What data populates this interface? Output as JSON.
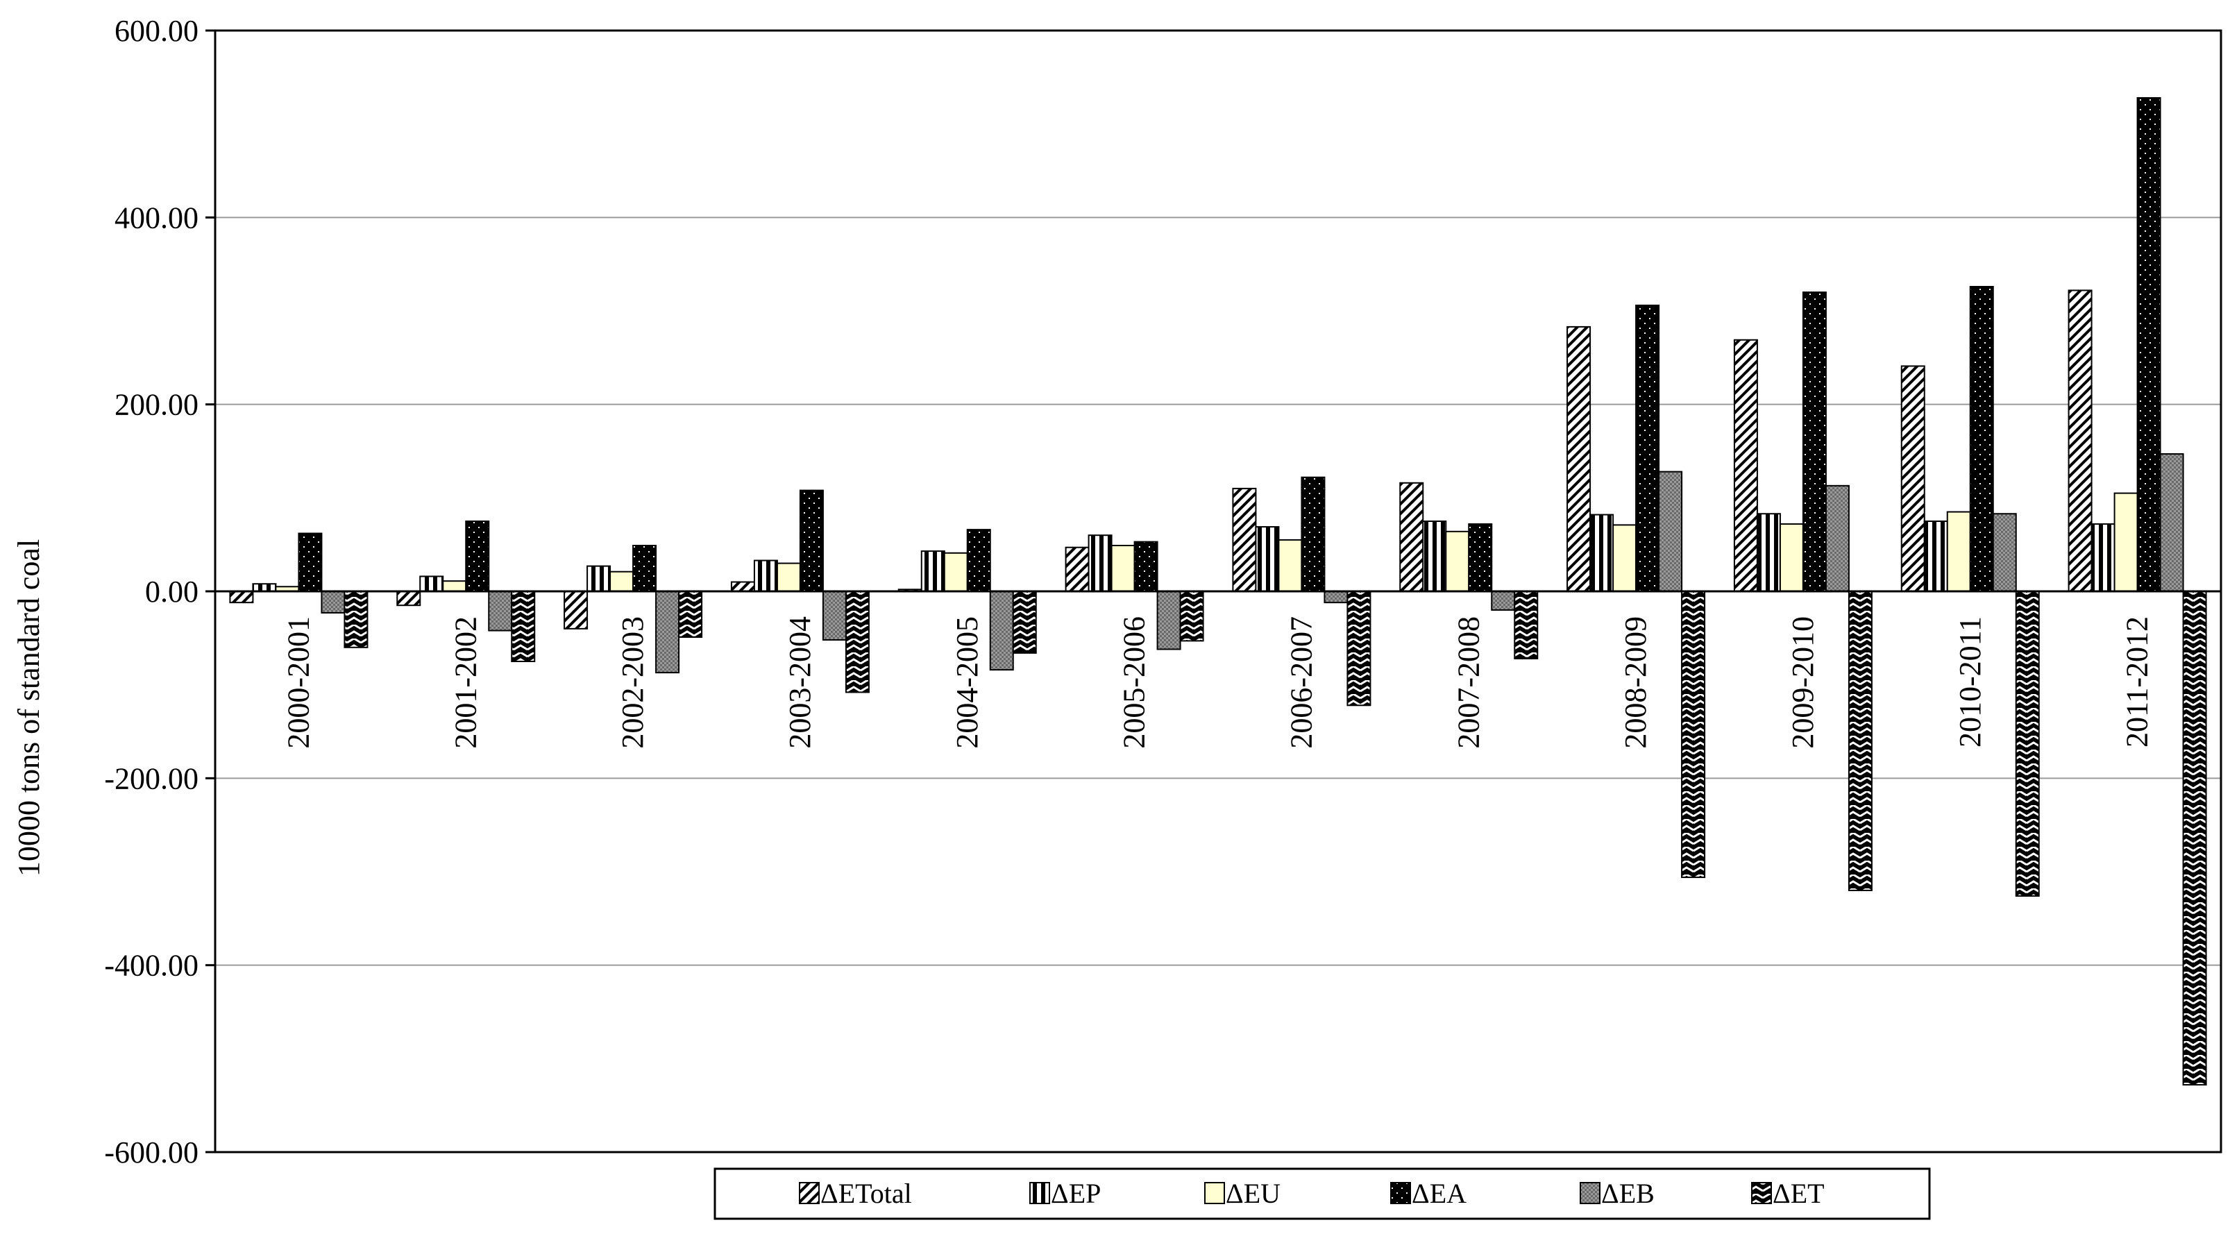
{
  "chart_data": {
    "type": "bar",
    "title": "",
    "xlabel": "",
    "ylabel": "10000 tons of standard coal",
    "ylim": [
      -600,
      600
    ],
    "yticks": [
      "600.00",
      "400.00",
      "200.00",
      "0.00",
      "-200.00",
      "-400.00",
      "-600.00"
    ],
    "ytick_values": [
      600,
      400,
      200,
      0,
      -200,
      -400,
      -600
    ],
    "grid": true,
    "legend_position": "bottom",
    "categories": [
      "2000-2001",
      "2001-2002",
      "2002-2003",
      "2003-2004",
      "2004-2005",
      "2005-2006",
      "2006-2007",
      "2007-2008",
      "2008-2009",
      "2009-2010",
      "2010-2011",
      "2011-2012"
    ],
    "series": [
      {
        "name": "ΔETotal",
        "pattern": "diag-right",
        "values": [
          -12,
          -15,
          -40,
          10,
          2,
          47,
          110,
          116,
          283,
          269,
          241,
          322
        ]
      },
      {
        "name": "ΔEP",
        "pattern": "vertical",
        "values": [
          8,
          16,
          27,
          33,
          43,
          60,
          69,
          75,
          82,
          83,
          75,
          72
        ]
      },
      {
        "name": "ΔEU",
        "pattern": "cream",
        "values": [
          5,
          11,
          21,
          30,
          41,
          49,
          55,
          64,
          71,
          72,
          85,
          105
        ]
      },
      {
        "name": "ΔEA",
        "pattern": "dots",
        "values": [
          62,
          75,
          49,
          108,
          66,
          53,
          122,
          72,
          306,
          320,
          326,
          528
        ]
      },
      {
        "name": "ΔEB",
        "pattern": "grey-check",
        "values": [
          -23,
          -42,
          -87,
          -52,
          -84,
          -62,
          -12,
          -20,
          128,
          113,
          83,
          147
        ]
      },
      {
        "name": "ΔET",
        "pattern": "zigzag",
        "values": [
          -60,
          -75,
          -49,
          -108,
          -66,
          -53,
          -122,
          -72,
          -306,
          -320,
          -326,
          -528
        ]
      }
    ]
  }
}
